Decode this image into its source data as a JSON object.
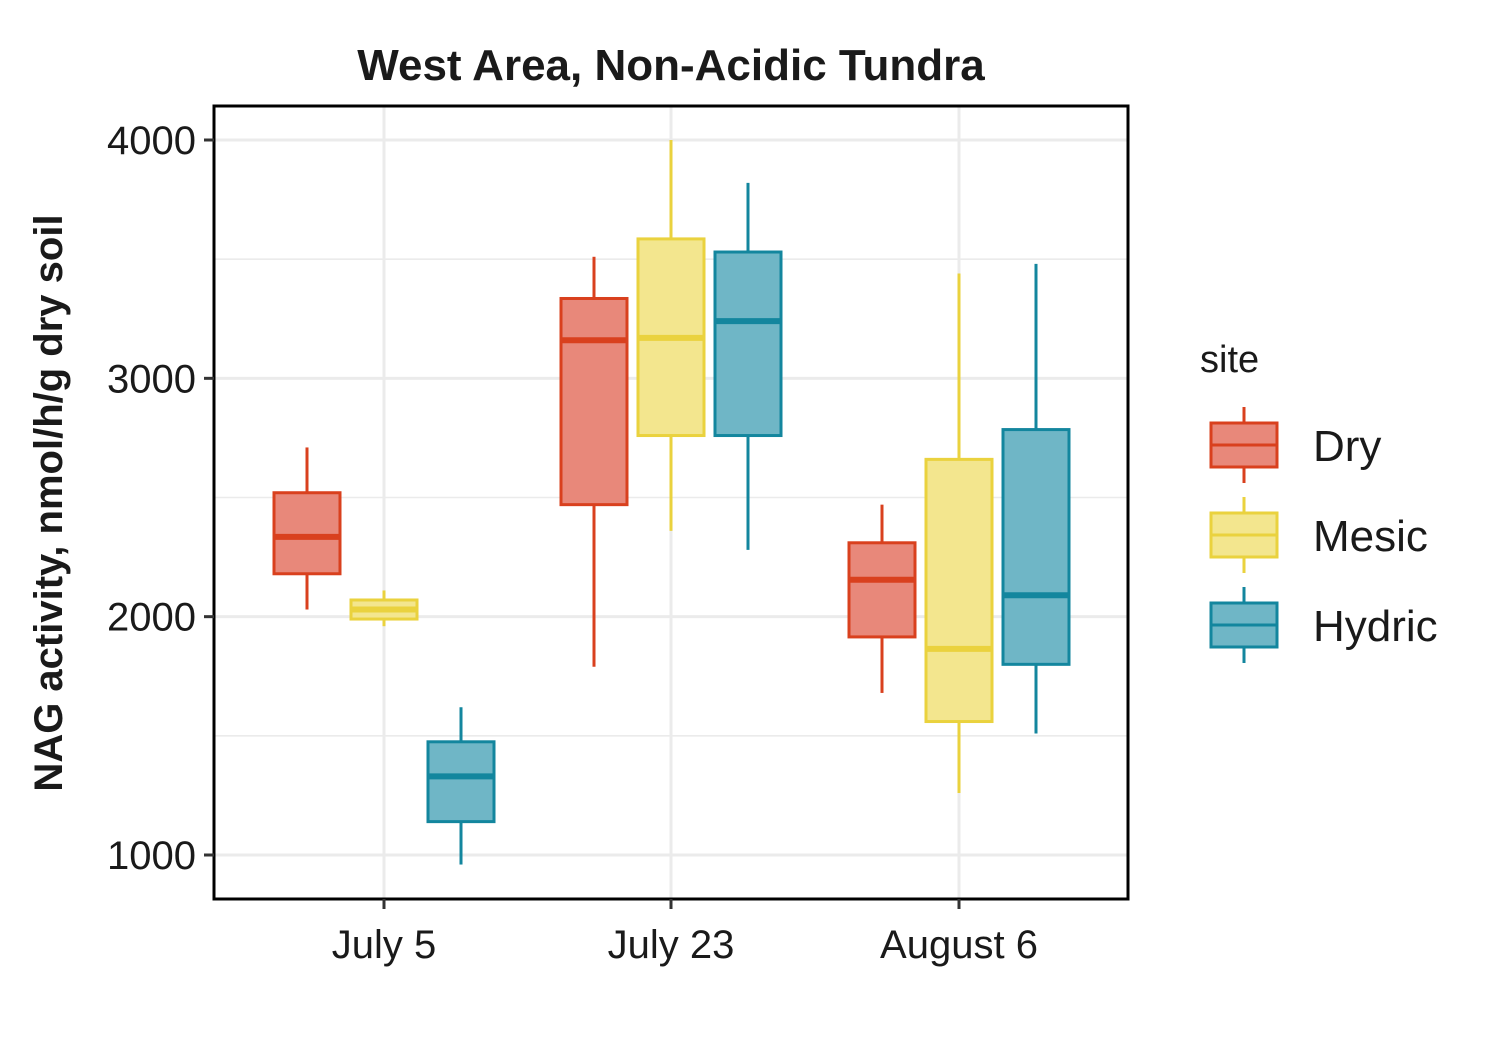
{
  "chart_data": {
    "type": "boxplot",
    "title": "West Area, Non-Acidic Tundra",
    "xlabel": "",
    "ylabel": "NAG activity, nmol/h/g dry soil",
    "ylim": [
      870,
      4150
    ],
    "y_ticks": [
      1000,
      2000,
      3000,
      4000
    ],
    "grid": true,
    "legend_title": "site",
    "legend_position": "right",
    "categories": [
      "July 5",
      "July 23",
      "August 6"
    ],
    "series": [
      {
        "name": "Dry",
        "color": "#D9401E",
        "fill": "#E8887A",
        "boxes": [
          {
            "min": 2030,
            "q1": 2180,
            "median": 2335,
            "q3": 2520,
            "max": 2710
          },
          {
            "min": 1790,
            "q1": 2470,
            "median": 3160,
            "q3": 3335,
            "max": 3510
          },
          {
            "min": 1680,
            "q1": 1915,
            "median": 2155,
            "q3": 2310,
            "max": 2470
          }
        ]
      },
      {
        "name": "Mesic",
        "color": "#EAD23E",
        "fill": "#F3E68E",
        "boxes": [
          {
            "min": 1960,
            "q1": 1990,
            "median": 2030,
            "q3": 2070,
            "max": 2110
          },
          {
            "min": 2360,
            "q1": 2760,
            "median": 3170,
            "q3": 3585,
            "max": 4000
          },
          {
            "min": 1260,
            "q1": 1560,
            "median": 1865,
            "q3": 2660,
            "max": 3440
          }
        ]
      },
      {
        "name": "Hydric",
        "color": "#13869E",
        "fill": "#6FB6C6",
        "boxes": [
          {
            "min": 960,
            "q1": 1140,
            "median": 1330,
            "q3": 1475,
            "max": 1620
          },
          {
            "min": 2280,
            "q1": 2760,
            "median": 3240,
            "q3": 3530,
            "max": 3820
          },
          {
            "min": 1510,
            "q1": 1800,
            "median": 2090,
            "q3": 2785,
            "max": 3480
          }
        ]
      }
    ]
  }
}
